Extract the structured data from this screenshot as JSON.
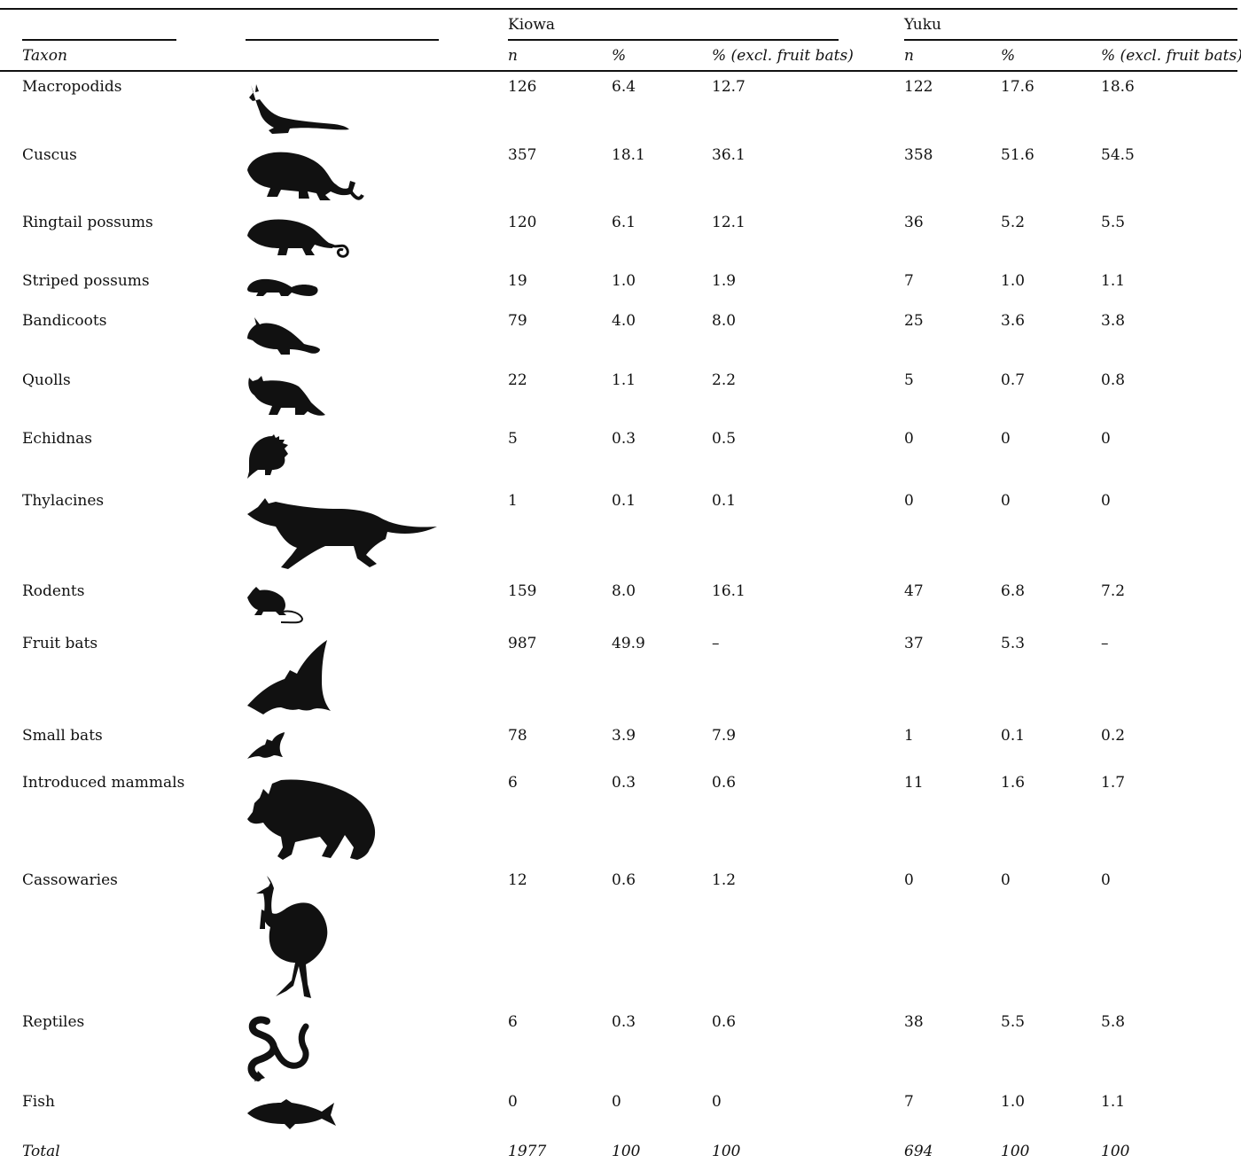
{
  "table": {
    "groups": {
      "kiowa": "Kiowa",
      "yuku": "Yuku"
    },
    "columns": {
      "taxon": "Taxon",
      "n": "n",
      "pct": "%",
      "pct_excl": "% (excl. fruit bats)"
    },
    "rows": [
      {
        "taxon": "Macropodids",
        "icon": "macropod-icon",
        "kiowa_n": "126",
        "kiowa_pct": "6.4",
        "kiowa_excl": "12.7",
        "yuku_n": "122",
        "yuku_pct": "17.6",
        "yuku_excl": "18.6"
      },
      {
        "taxon": "Cuscus",
        "icon": "cuscus-icon",
        "kiowa_n": "357",
        "kiowa_pct": "18.1",
        "kiowa_excl": "36.1",
        "yuku_n": "358",
        "yuku_pct": "51.6",
        "yuku_excl": "54.5"
      },
      {
        "taxon": "Ringtail possums",
        "icon": "ringtail-possum-icon",
        "kiowa_n": "120",
        "kiowa_pct": "6.1",
        "kiowa_excl": "12.1",
        "yuku_n": "36",
        "yuku_pct": "5.2",
        "yuku_excl": "5.5"
      },
      {
        "taxon": "Striped possums",
        "icon": "striped-possum-icon",
        "kiowa_n": "19",
        "kiowa_pct": "1.0",
        "kiowa_excl": "1.9",
        "yuku_n": "7",
        "yuku_pct": "1.0",
        "yuku_excl": "1.1"
      },
      {
        "taxon": "Bandicoots",
        "icon": "bandicoot-icon",
        "kiowa_n": "79",
        "kiowa_pct": "4.0",
        "kiowa_excl": "8.0",
        "yuku_n": "25",
        "yuku_pct": "3.6",
        "yuku_excl": "3.8"
      },
      {
        "taxon": "Quolls",
        "icon": "quoll-icon",
        "kiowa_n": "22",
        "kiowa_pct": "1.1",
        "kiowa_excl": "2.2",
        "yuku_n": "5",
        "yuku_pct": "0.7",
        "yuku_excl": "0.8"
      },
      {
        "taxon": "Echidnas",
        "icon": "echidna-icon",
        "kiowa_n": "5",
        "kiowa_pct": "0.3",
        "kiowa_excl": "0.5",
        "yuku_n": "0",
        "yuku_pct": "0",
        "yuku_excl": "0"
      },
      {
        "taxon": "Thylacines",
        "icon": "thylacine-icon",
        "kiowa_n": "1",
        "kiowa_pct": "0.1",
        "kiowa_excl": "0.1",
        "yuku_n": "0",
        "yuku_pct": "0",
        "yuku_excl": "0"
      },
      {
        "taxon": "Rodents",
        "icon": "rodent-icon",
        "kiowa_n": "159",
        "kiowa_pct": "8.0",
        "kiowa_excl": "16.1",
        "yuku_n": "47",
        "yuku_pct": "6.8",
        "yuku_excl": "7.2"
      },
      {
        "taxon": "Fruit bats",
        "icon": "fruit-bat-icon",
        "kiowa_n": "987",
        "kiowa_pct": "49.9",
        "kiowa_excl": "–",
        "yuku_n": "37",
        "yuku_pct": "5.3",
        "yuku_excl": "–"
      },
      {
        "taxon": "Small bats",
        "icon": "small-bat-icon",
        "kiowa_n": "78",
        "kiowa_pct": "3.9",
        "kiowa_excl": "7.9",
        "yuku_n": "1",
        "yuku_pct": "0.1",
        "yuku_excl": "0.2"
      },
      {
        "taxon": "Introduced mammals",
        "icon": "pig-icon",
        "kiowa_n": "6",
        "kiowa_pct": "0.3",
        "kiowa_excl": "0.6",
        "yuku_n": "11",
        "yuku_pct": "1.6",
        "yuku_excl": "1.7"
      },
      {
        "taxon": "Cassowaries",
        "icon": "cassowary-icon",
        "kiowa_n": "12",
        "kiowa_pct": "0.6",
        "kiowa_excl": "1.2",
        "yuku_n": "0",
        "yuku_pct": "0",
        "yuku_excl": "0"
      },
      {
        "taxon": "Reptiles",
        "icon": "snake-icon",
        "kiowa_n": "6",
        "kiowa_pct": "0.3",
        "kiowa_excl": "0.6",
        "yuku_n": "38",
        "yuku_pct": "5.5",
        "yuku_excl": "5.8"
      },
      {
        "taxon": "Fish",
        "icon": "fish-icon",
        "kiowa_n": "0",
        "kiowa_pct": "0",
        "kiowa_excl": "0",
        "yuku_n": "7",
        "yuku_pct": "1.0",
        "yuku_excl": "1.1"
      }
    ],
    "total": {
      "label": "Total",
      "kiowa_n": "1977",
      "kiowa_pct": "100",
      "kiowa_excl": "100",
      "yuku_n": "694",
      "yuku_pct": "100",
      "yuku_excl": "100"
    }
  }
}
